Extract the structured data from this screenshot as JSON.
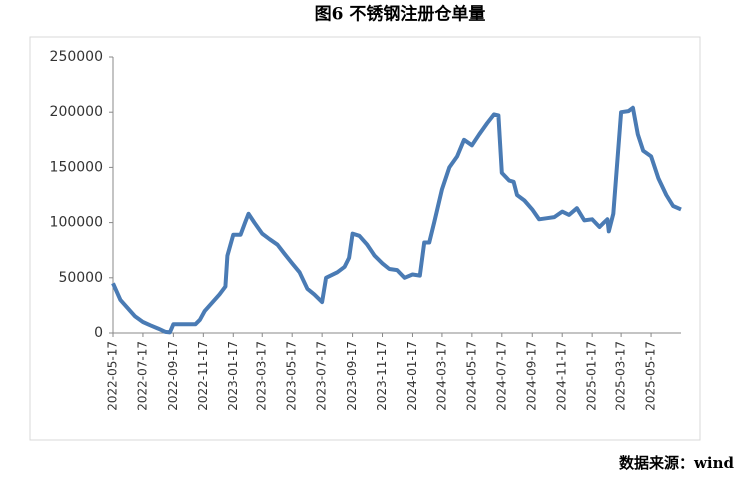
{
  "chart_data": {
    "type": "line",
    "title": "图6 不锈钢注册仓单量",
    "source": "数据来源：wind",
    "x": [
      "2022-05-17",
      "2022-06-01",
      "2022-06-17",
      "2022-07-01",
      "2022-07-17",
      "2022-08-01",
      "2022-08-17",
      "2022-09-01",
      "2022-09-10",
      "2022-09-17",
      "2022-10-17",
      "2022-11-01",
      "2022-11-10",
      "2022-11-20",
      "2022-12-10",
      "2022-12-20",
      "2023-01-01",
      "2023-01-05",
      "2023-01-17",
      "2023-02-01",
      "2023-02-10",
      "2023-02-17",
      "2023-03-01",
      "2023-03-17",
      "2023-04-01",
      "2023-04-17",
      "2023-05-01",
      "2023-05-17",
      "2023-06-01",
      "2023-06-17",
      "2023-07-01",
      "2023-07-17",
      "2023-07-25",
      "2023-08-17",
      "2023-09-01",
      "2023-09-10",
      "2023-09-17",
      "2023-10-01",
      "2023-10-17",
      "2023-11-01",
      "2023-11-17",
      "2023-12-01",
      "2023-12-17",
      "2024-01-01",
      "2024-01-17",
      "2024-02-01",
      "2024-02-10",
      "2024-02-20",
      "2024-03-01",
      "2024-03-17",
      "2024-04-01",
      "2024-04-17",
      "2024-05-01",
      "2024-05-17",
      "2024-06-01",
      "2024-06-17",
      "2024-07-01",
      "2024-07-10",
      "2024-07-17",
      "2024-08-01",
      "2024-08-10",
      "2024-08-17",
      "2024-09-01",
      "2024-09-17",
      "2024-10-01",
      "2024-10-17",
      "2024-11-01",
      "2024-11-17",
      "2024-12-01",
      "2024-12-17",
      "2025-01-01",
      "2025-01-17",
      "2025-02-01",
      "2025-02-10",
      "2025-02-17",
      "2025-02-20",
      "2025-03-01",
      "2025-03-10",
      "2025-03-17",
      "2025-04-01",
      "2025-04-10",
      "2025-04-20",
      "2025-05-01",
      "2025-05-17",
      "2025-06-01",
      "2025-06-17",
      "2025-07-01",
      "2025-07-17"
    ],
    "series": [
      {
        "name": "不锈钢注册仓单量",
        "color": "#4a7bb4",
        "values": [
          45000,
          30000,
          22000,
          15000,
          10000,
          7000,
          4000,
          1000,
          500,
          8000,
          8000,
          8000,
          12000,
          20000,
          30000,
          35000,
          42000,
          70000,
          89000,
          89000,
          100000,
          108000,
          100000,
          90000,
          85000,
          80000,
          72000,
          63000,
          55000,
          40000,
          35000,
          28000,
          50000,
          55000,
          60000,
          68000,
          90000,
          88000,
          80000,
          70000,
          63000,
          58000,
          57000,
          50000,
          53000,
          52000,
          82000,
          82000,
          100000,
          130000,
          150000,
          160000,
          175000,
          170000,
          180000,
          190000,
          198000,
          197000,
          145000,
          138000,
          137000,
          125000,
          120000,
          112000,
          103000,
          104000,
          105000,
          110000,
          107000,
          113000,
          102000,
          103000,
          96000,
          100000,
          103000,
          92000,
          108000,
          160000,
          200000,
          201000,
          204000,
          180000,
          165000,
          160000,
          140000,
          125000,
          115000,
          112000
        ]
      }
    ],
    "xlim": [
      "2022-05-17",
      "2025-07-17"
    ],
    "xticks": [
      "2022-05-17",
      "2022-07-17",
      "2022-09-17",
      "2022-11-17",
      "2023-01-17",
      "2023-03-17",
      "2023-05-17",
      "2023-07-17",
      "2023-09-17",
      "2023-11-17",
      "2024-01-17",
      "2024-03-17",
      "2024-05-17",
      "2024-07-17",
      "2024-09-17",
      "2024-11-17",
      "2025-01-17",
      "2025-03-17",
      "2025-05-17"
    ],
    "ylim": [
      0,
      250000
    ],
    "yticks": [
      0,
      50000,
      100000,
      150000,
      200000,
      250000
    ],
    "grid": false
  }
}
